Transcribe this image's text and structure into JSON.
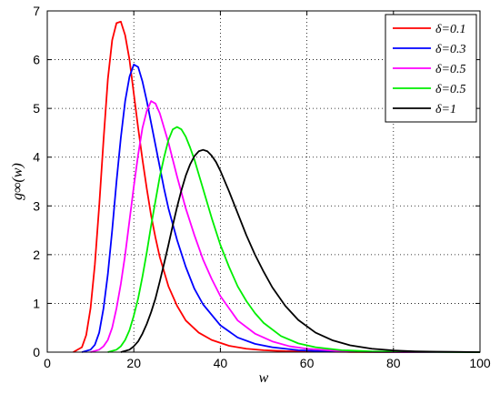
{
  "chart_data": {
    "type": "line",
    "title": "",
    "xlabel": "w",
    "ylabel": "g∞(w)",
    "xlim": [
      0,
      100
    ],
    "ylim": [
      0,
      7
    ],
    "xticks": [
      0,
      20,
      40,
      60,
      80,
      100
    ],
    "yticks": [
      0,
      1,
      2,
      3,
      4,
      5,
      6,
      7
    ],
    "grid": true,
    "legend_position": "top-right",
    "series": [
      {
        "name": "δ=0.1",
        "color": "#ff0000",
        "x": [
          6,
          8,
          9,
          10,
          11,
          12,
          13,
          14,
          15,
          16,
          17,
          18,
          19,
          20,
          21,
          22,
          23,
          24,
          25,
          26,
          28,
          30,
          32,
          35,
          38,
          42,
          46,
          50,
          55,
          60,
          70,
          80,
          100
        ],
        "y": [
          0,
          0.1,
          0.35,
          0.9,
          1.8,
          3.0,
          4.35,
          5.6,
          6.4,
          6.75,
          6.78,
          6.5,
          6.0,
          5.3,
          4.6,
          3.95,
          3.35,
          2.8,
          2.35,
          1.95,
          1.35,
          0.95,
          0.65,
          0.4,
          0.25,
          0.13,
          0.07,
          0.04,
          0.02,
          0.01,
          0.004,
          0.001,
          0
        ]
      },
      {
        "name": "δ=0.3",
        "color": "#0000ff",
        "x": [
          8,
          10,
          11,
          12,
          13,
          14,
          15,
          16,
          17,
          18,
          19,
          20,
          21,
          22,
          23,
          24,
          25,
          26,
          27,
          28,
          30,
          32,
          34,
          36,
          40,
          44,
          48,
          52,
          58,
          65,
          75,
          100
        ],
        "y": [
          0,
          0.05,
          0.15,
          0.4,
          0.9,
          1.6,
          2.5,
          3.5,
          4.4,
          5.15,
          5.65,
          5.9,
          5.85,
          5.55,
          5.15,
          4.7,
          4.25,
          3.8,
          3.35,
          2.95,
          2.3,
          1.75,
          1.3,
          0.98,
          0.55,
          0.3,
          0.17,
          0.1,
          0.04,
          0.015,
          0.005,
          0
        ]
      },
      {
        "name": "δ=0.5",
        "color": "#ff00ff",
        "x": [
          10,
          12,
          13,
          14,
          15,
          16,
          17,
          18,
          19,
          20,
          21,
          22,
          23,
          24,
          25,
          26,
          27,
          28,
          29,
          30,
          32,
          34,
          36,
          38,
          40,
          44,
          48,
          52,
          56,
          60,
          68,
          80,
          100
        ],
        "y": [
          0,
          0.05,
          0.12,
          0.25,
          0.5,
          0.9,
          1.4,
          2.0,
          2.7,
          3.4,
          4.05,
          4.6,
          4.95,
          5.15,
          5.1,
          4.9,
          4.6,
          4.3,
          3.95,
          3.6,
          2.95,
          2.4,
          1.9,
          1.5,
          1.15,
          0.65,
          0.38,
          0.22,
          0.12,
          0.07,
          0.02,
          0.005,
          0
        ]
      },
      {
        "name": "δ=0.5",
        "color": "#00ee00",
        "x": [
          14,
          16,
          17,
          18,
          19,
          20,
          21,
          22,
          23,
          24,
          25,
          26,
          27,
          28,
          29,
          30,
          31,
          32,
          33,
          34,
          35,
          36,
          38,
          40,
          42,
          44,
          46,
          48,
          50,
          54,
          58,
          62,
          68,
          75,
          85,
          100
        ],
        "y": [
          0,
          0.05,
          0.12,
          0.25,
          0.45,
          0.75,
          1.1,
          1.55,
          2.05,
          2.6,
          3.1,
          3.6,
          4.0,
          4.35,
          4.57,
          4.62,
          4.57,
          4.42,
          4.2,
          3.95,
          3.65,
          3.35,
          2.75,
          2.2,
          1.75,
          1.35,
          1.05,
          0.8,
          0.6,
          0.33,
          0.18,
          0.1,
          0.04,
          0.015,
          0.005,
          0
        ]
      },
      {
        "name": "δ=1",
        "color": "#000000",
        "x": [
          17,
          19,
          20,
          21,
          22,
          23,
          24,
          25,
          26,
          27,
          28,
          29,
          30,
          31,
          32,
          33,
          34,
          35,
          36,
          37,
          38,
          39,
          40,
          42,
          44,
          46,
          48,
          50,
          52,
          55,
          58,
          62,
          66,
          70,
          75,
          80,
          85,
          90,
          100
        ],
        "y": [
          0,
          0.05,
          0.12,
          0.22,
          0.38,
          0.58,
          0.82,
          1.1,
          1.45,
          1.82,
          2.2,
          2.6,
          2.98,
          3.32,
          3.62,
          3.85,
          4.02,
          4.12,
          4.15,
          4.12,
          4.03,
          3.9,
          3.72,
          3.3,
          2.85,
          2.4,
          2.0,
          1.65,
          1.33,
          0.95,
          0.66,
          0.4,
          0.24,
          0.14,
          0.07,
          0.035,
          0.017,
          0.008,
          0
        ]
      }
    ]
  }
}
